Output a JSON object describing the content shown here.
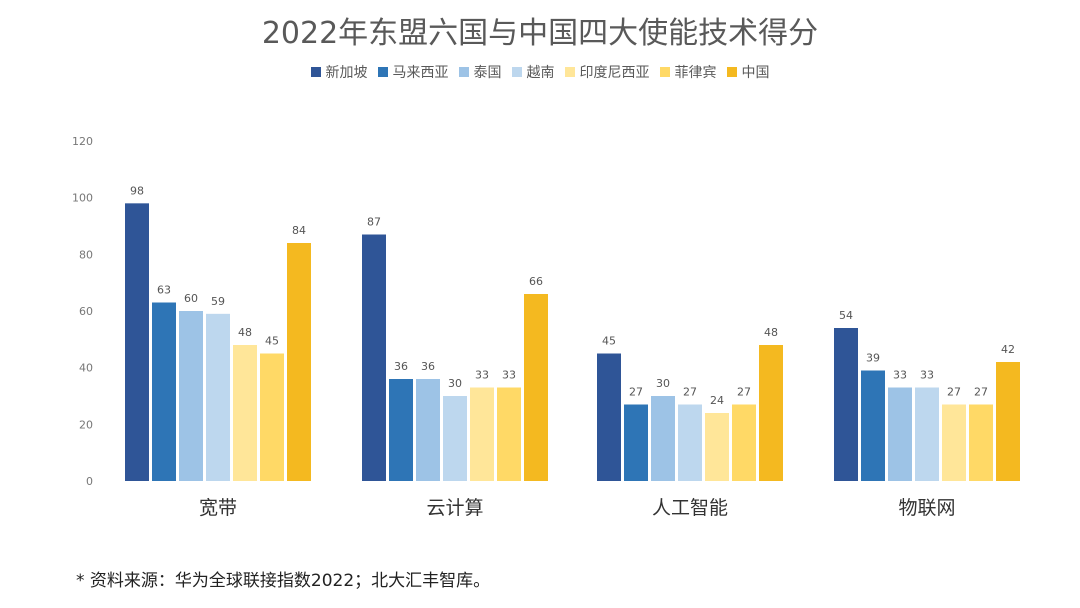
{
  "chart_data": {
    "type": "bar",
    "title": "2022年东盟六国与中国四大使能技术得分",
    "categories": [
      "宽带",
      "云计算",
      "人工智能",
      "物联网"
    ],
    "series": [
      {
        "name": "新加坡",
        "color": "#2f5597",
        "values": [
          98,
          87,
          45,
          54
        ]
      },
      {
        "name": "马来西亚",
        "color": "#2e75b6",
        "values": [
          63,
          36,
          27,
          39
        ]
      },
      {
        "name": "泰国",
        "color": "#9dc3e6",
        "values": [
          60,
          36,
          30,
          33
        ]
      },
      {
        "name": "越南",
        "color": "#bdd7ee",
        "values": [
          59,
          30,
          27,
          33
        ]
      },
      {
        "name": "印度尼西亚",
        "color": "#ffe699",
        "values": [
          48,
          33,
          24,
          27
        ]
      },
      {
        "name": "菲律宾",
        "color": "#ffd966",
        "values": [
          45,
          33,
          27,
          27
        ]
      },
      {
        "name": "中国",
        "color": "#f4b920",
        "values": [
          84,
          66,
          48,
          42
        ]
      }
    ],
    "ylim": [
      0,
      120
    ],
    "yticks": [
      0,
      20,
      40,
      60,
      80,
      100,
      120
    ],
    "grid": false,
    "legend": "top",
    "source_note": "* 资料来源：华为全球联接指数2022；北大汇丰智库。"
  }
}
